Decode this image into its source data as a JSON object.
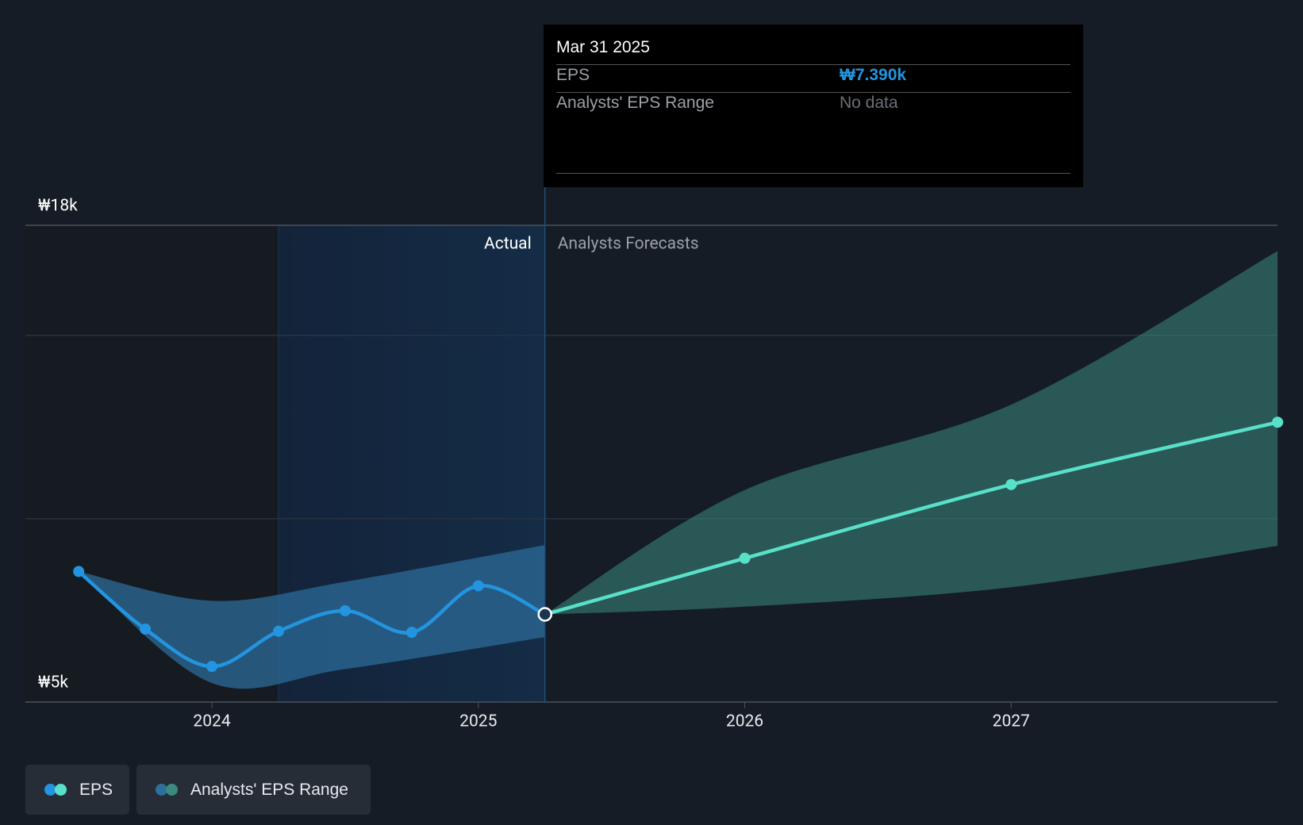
{
  "chart_data": {
    "type": "line",
    "eps": {
      "name": "EPS",
      "color": "#2394df",
      "forecast_color": "#58e0c8",
      "x": [
        2023.5,
        2023.75,
        2024,
        2024.25,
        2024.5,
        2024.75,
        2025,
        2025.25,
        2026,
        2027,
        2028
      ],
      "values": [
        8560,
        6990,
        5970,
        6930,
        7490,
        6900,
        8170,
        7390,
        8920,
        10930,
        12630
      ]
    },
    "range": {
      "name": "Analysts' EPS Range",
      "color": "#2e6f9e",
      "forecast_color": "#3b8a80",
      "actual": {
        "x": [
          2023.5,
          2024,
          2024.5,
          2025.25
        ],
        "low": [
          8560,
          5520,
          5900,
          6770
        ],
        "high": [
          8560,
          7760,
          8280,
          9280
        ]
      },
      "forecast": {
        "x": [
          2025.25,
          2026,
          2027,
          2028
        ],
        "low": [
          7390,
          7600,
          8130,
          9260
        ],
        "high": [
          7390,
          10780,
          13110,
          17300
        ]
      }
    },
    "divider": 2025.25,
    "actual_label": "Actual",
    "forecast_label": "Analysts Forecasts",
    "xlim": [
      2023.3,
      2028
    ],
    "xticks": [
      2024,
      2025,
      2026,
      2027
    ],
    "ylim": [
      5000,
      18000
    ],
    "yticks": [
      {
        "value": 5000,
        "label": "₩5k"
      },
      {
        "value": 18000,
        "label": "₩18k"
      }
    ],
    "ygrid": [
      10000,
      15000
    ],
    "tooltip": {
      "date": "Mar 31 2025",
      "rows": [
        {
          "label": "EPS",
          "value": "₩7.390k"
        },
        {
          "label": "Analysts' EPS Range",
          "value": "No data"
        }
      ]
    }
  }
}
